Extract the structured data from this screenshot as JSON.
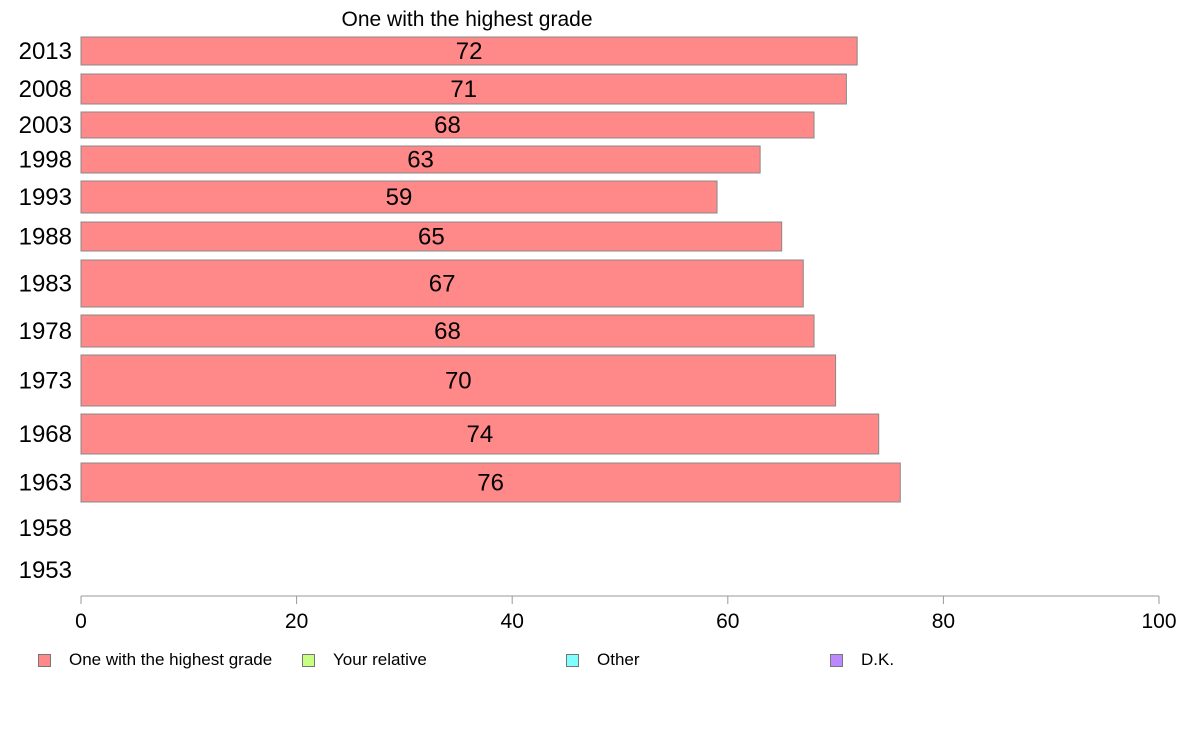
{
  "chart_data": {
    "type": "bar",
    "orientation": "horizontal",
    "title": "One with the highest grade",
    "categories": [
      "2013",
      "2008",
      "2003",
      "1998",
      "1993",
      "1988",
      "1983",
      "1978",
      "1973",
      "1968",
      "1963",
      "1958",
      "1953"
    ],
    "series": [
      {
        "name": "One with the highest grade",
        "color": "#ff8888",
        "values": [
          72,
          71,
          68,
          63,
          59,
          65,
          67,
          68,
          70,
          74,
          76,
          null,
          null
        ]
      }
    ],
    "xlim": [
      0,
      100
    ],
    "xticks": [
      0,
      20,
      40,
      60,
      80,
      100
    ],
    "grid": false,
    "legend_placement": "bottom"
  },
  "legend": [
    {
      "label": "One with the highest grade",
      "color": "#ff8888"
    },
    {
      "label": "Your relative",
      "color": "#c8ff80"
    },
    {
      "label": "Other",
      "color": "#80ffff"
    },
    {
      "label": "D.K.",
      "color": "#bb88ff"
    }
  ]
}
